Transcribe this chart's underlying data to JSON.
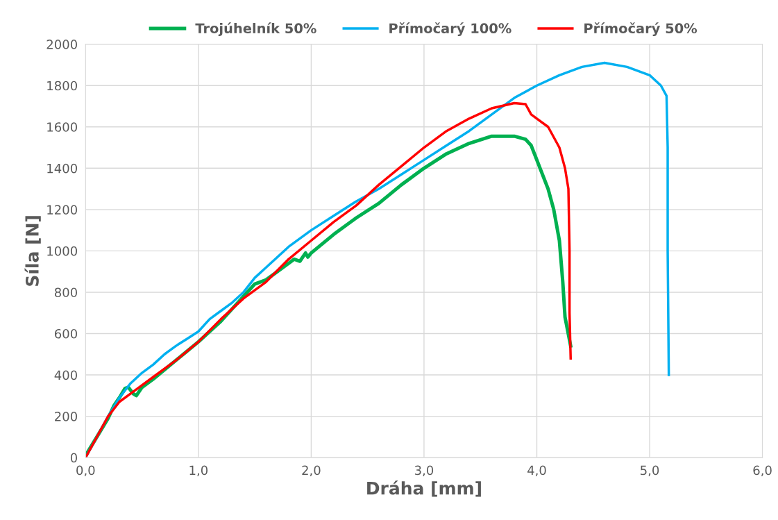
{
  "chart_data": {
    "type": "line",
    "xlabel": "Dráha [mm]",
    "ylabel": "Síla [N]",
    "xlim": [
      0,
      6
    ],
    "ylim": [
      0,
      2000
    ],
    "xticks": [
      {
        "value": 0,
        "label": "0,0"
      },
      {
        "value": 1,
        "label": "1,0"
      },
      {
        "value": 2,
        "label": "2,0"
      },
      {
        "value": 3,
        "label": "3,0"
      },
      {
        "value": 4,
        "label": "4,0"
      },
      {
        "value": 5,
        "label": "5,0"
      },
      {
        "value": 6,
        "label": "6,0"
      }
    ],
    "yticks": [
      0,
      200,
      400,
      600,
      800,
      1000,
      1200,
      1400,
      1600,
      1800,
      2000
    ],
    "grid": true,
    "legend": "top",
    "marker": "none",
    "line_style": "solid",
    "series": [
      {
        "name": "Trojúhelník 50%",
        "color": "#00b050",
        "x": [
          0,
          0.1,
          0.2,
          0.25,
          0.3,
          0.35,
          0.38,
          0.42,
          0.45,
          0.5,
          0.6,
          0.8,
          1.0,
          1.2,
          1.4,
          1.5,
          1.6,
          1.7,
          1.8,
          1.85,
          1.9,
          1.95,
          1.97,
          2.0,
          2.2,
          2.4,
          2.6,
          2.8,
          3.0,
          3.2,
          3.4,
          3.6,
          3.8,
          3.9,
          3.95,
          4.0,
          4.1,
          4.15,
          4.2,
          4.23,
          4.25,
          4.3
        ],
        "values": [
          10,
          100,
          190,
          250,
          290,
          335,
          340,
          310,
          300,
          340,
          380,
          470,
          560,
          660,
          780,
          840,
          860,
          900,
          940,
          960,
          950,
          990,
          970,
          990,
          1080,
          1160,
          1230,
          1320,
          1400,
          1470,
          1520,
          1555,
          1555,
          1540,
          1510,
          1440,
          1300,
          1200,
          1050,
          850,
          680,
          540
        ]
      },
      {
        "name": "Přímočarý 100%",
        "color": "#00b0f0",
        "x": [
          0,
          0.1,
          0.2,
          0.3,
          0.4,
          0.5,
          0.6,
          0.7,
          0.8,
          0.9,
          1.0,
          1.1,
          1.2,
          1.3,
          1.4,
          1.5,
          1.6,
          1.8,
          2.0,
          2.2,
          2.4,
          2.6,
          2.8,
          3.0,
          3.2,
          3.4,
          3.6,
          3.8,
          4.0,
          4.2,
          4.4,
          4.6,
          4.8,
          5.0,
          5.1,
          5.15,
          5.16,
          5.16,
          5.17
        ],
        "values": [
          0,
          100,
          200,
          290,
          360,
          410,
          450,
          500,
          540,
          575,
          610,
          670,
          710,
          750,
          800,
          870,
          920,
          1020,
          1100,
          1170,
          1240,
          1300,
          1370,
          1440,
          1510,
          1580,
          1660,
          1740,
          1800,
          1850,
          1890,
          1910,
          1890,
          1850,
          1800,
          1750,
          1500,
          1000,
          400
        ]
      },
      {
        "name": "Přímočarý 50%",
        "color": "#ff0000",
        "x": [
          0,
          0.1,
          0.2,
          0.3,
          0.4,
          0.5,
          0.6,
          0.8,
          1.0,
          1.2,
          1.4,
          1.6,
          1.8,
          2.0,
          2.2,
          2.4,
          2.6,
          2.8,
          3.0,
          3.2,
          3.4,
          3.6,
          3.8,
          3.9,
          3.95,
          4.0,
          4.1,
          4.2,
          4.25,
          4.28,
          4.29,
          4.29,
          4.3
        ],
        "values": [
          0,
          100,
          200,
          270,
          310,
          350,
          390,
          470,
          560,
          670,
          770,
          850,
          960,
          1050,
          1140,
          1220,
          1320,
          1410,
          1500,
          1580,
          1640,
          1690,
          1715,
          1710,
          1660,
          1640,
          1600,
          1500,
          1400,
          1300,
          1000,
          700,
          480
        ]
      }
    ]
  }
}
